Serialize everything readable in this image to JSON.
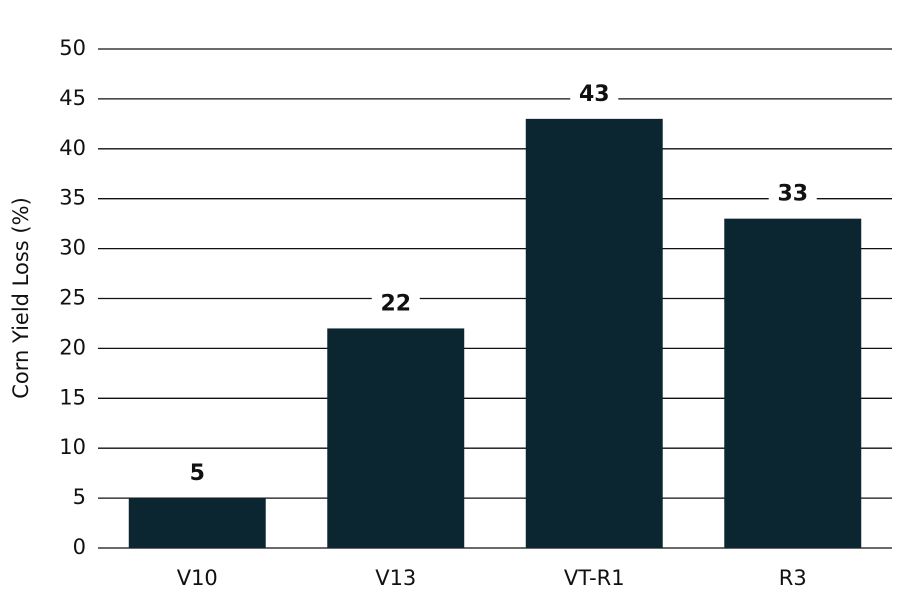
{
  "chart_data": {
    "type": "bar",
    "y_label": "Corn Yield Loss (%)",
    "categories": [
      "V10",
      "V13",
      "VT-R1",
      "R3"
    ],
    "values": [
      5,
      22,
      43,
      33
    ],
    "color": "#0b2630",
    "ylim": [
      0,
      50
    ],
    "yticks": [
      0,
      5,
      10,
      15,
      20,
      25,
      30,
      35,
      40,
      45,
      50
    ],
    "grid": true
  }
}
